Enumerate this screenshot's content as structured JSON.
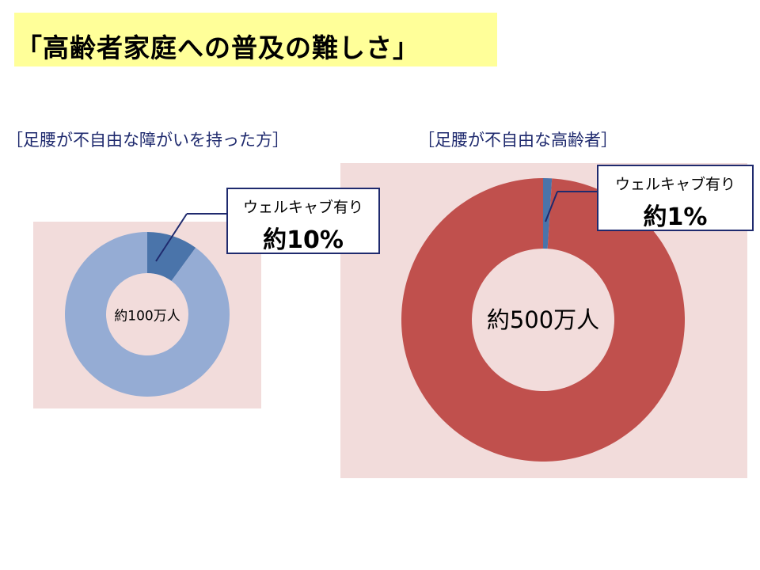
{
  "title": "「高齢者家庭への普及の難しさ」",
  "chart_data": [
    {
      "type": "pie",
      "title": "［足腰が不自由な障がいを持った方］",
      "center_label": "約100万人",
      "categories": [
        "ウェルキャブ有り",
        ""
      ],
      "values": [
        10,
        90
      ],
      "colors": [
        "#4a74aa",
        "#95acd4"
      ],
      "callout": {
        "label": "ウェルキャブ有り",
        "value": "約10%"
      }
    },
    {
      "type": "pie",
      "title": "［足腰が不自由な高齢者］",
      "center_label": "約500万人",
      "categories": [
        "ウェルキャブ有り",
        ""
      ],
      "values": [
        1,
        99
      ],
      "colors": [
        "#4a74aa",
        "#c0504d"
      ],
      "callout": {
        "label": "ウェルキャブ有り",
        "value": "約1%"
      }
    }
  ],
  "colors": {
    "title_bg": "#ffff99",
    "plot_bg": "#f2dcdb",
    "heading_text": "#1f2a6e",
    "callout_border": "#1f2a6e"
  }
}
